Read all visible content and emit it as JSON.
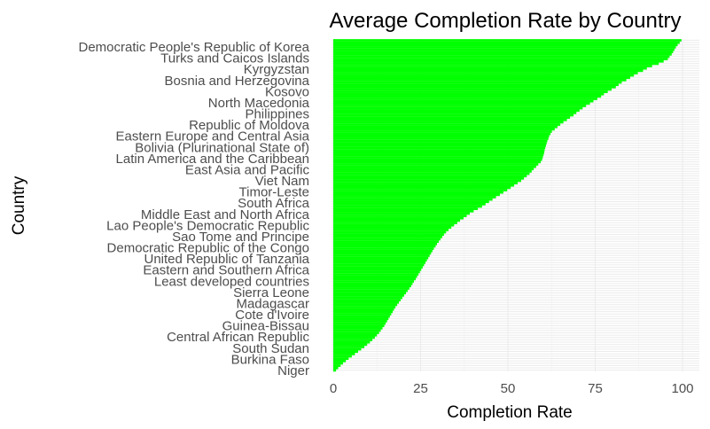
{
  "chart_data": {
    "type": "bar",
    "orientation": "horizontal",
    "title": "Average Completion Rate by Country",
    "xlabel": "Completion Rate",
    "ylabel": "Country",
    "xlim": [
      0,
      100
    ],
    "xticks": [
      0,
      25,
      50,
      75,
      100
    ],
    "bar_color": "#00ff00",
    "grid": true,
    "visible_labels": [
      "Democratic People's Republic of Korea",
      "Turks and Caicos Islands",
      "Kyrgyzstan",
      "Bosnia and Herzegovina",
      "Kosovo",
      "North Macedonia",
      "Philippines",
      "Republic of Moldova",
      "Eastern Europe and Central Asia",
      "Bolivia (Plurinational State of)",
      "Latin America and the Caribbean",
      "East Asia and Pacific",
      "Viet Nam",
      "Timor-Leste",
      "South Africa",
      "Middle East and North Africa",
      "Lao People's Democratic Republic",
      "Sao Tome and Principe",
      "Democratic Republic of the Congo",
      "United Republic of Tanzania",
      "Eastern and Southern Africa",
      "Least developed countries",
      "Sierra Leone",
      "Madagascar",
      "Cote d'Ivoire",
      "Guinea-Bissau",
      "Central African Republic",
      "South Sudan",
      "Burkina Faso",
      "Niger"
    ],
    "values": [
      99.7,
      99.2,
      98.6,
      98.1,
      97.7,
      97.3,
      96.9,
      96.3,
      95.8,
      94.6,
      93.2,
      91.3,
      89.8,
      88.7,
      87.2,
      86.1,
      85.0,
      83.9,
      82.6,
      81.7,
      80.9,
      79.7,
      78.6,
      77.5,
      76.7,
      75.6,
      74.5,
      73.5,
      72.4,
      71.4,
      70.5,
      69.6,
      68.8,
      67.8,
      66.9,
      65.9,
      65.0,
      64.2,
      63.4,
      62.6,
      62.2,
      61.8,
      61.6,
      61.3,
      61.1,
      60.9,
      60.7,
      60.5,
      60.4,
      60.2,
      60.0,
      59.8,
      59.4,
      58.7,
      58.1,
      57.4,
      56.8,
      56.2,
      55.4,
      54.6,
      53.8,
      52.8,
      51.8,
      50.8,
      49.8,
      48.7,
      47.7,
      46.6,
      45.6,
      44.6,
      43.6,
      42.6,
      41.4,
      40.2,
      39.1,
      38.2,
      37.3,
      36.3,
      35.5,
      34.6,
      33.8,
      33.0,
      32.3,
      31.7,
      31.2,
      30.7,
      30.2,
      29.7,
      29.3,
      28.8,
      28.4,
      28.0,
      27.6,
      27.2,
      26.8,
      26.4,
      26.0,
      25.6,
      25.2,
      24.8,
      24.4,
      24.0,
      23.6,
      23.1,
      22.7,
      22.3,
      21.8,
      21.3,
      20.8,
      20.3,
      19.8,
      19.3,
      18.8,
      18.3,
      17.8,
      17.4,
      17.0,
      16.6,
      16.2,
      15.8,
      15.4,
      15.0,
      14.6,
      14.1,
      13.6,
      13.1,
      12.5,
      11.9,
      11.2,
      10.5,
      9.7,
      8.9,
      8.0,
      7.1,
      6.2,
      5.3,
      4.4,
      3.6,
      2.8,
      2.1,
      1.4,
      0.8
    ]
  }
}
